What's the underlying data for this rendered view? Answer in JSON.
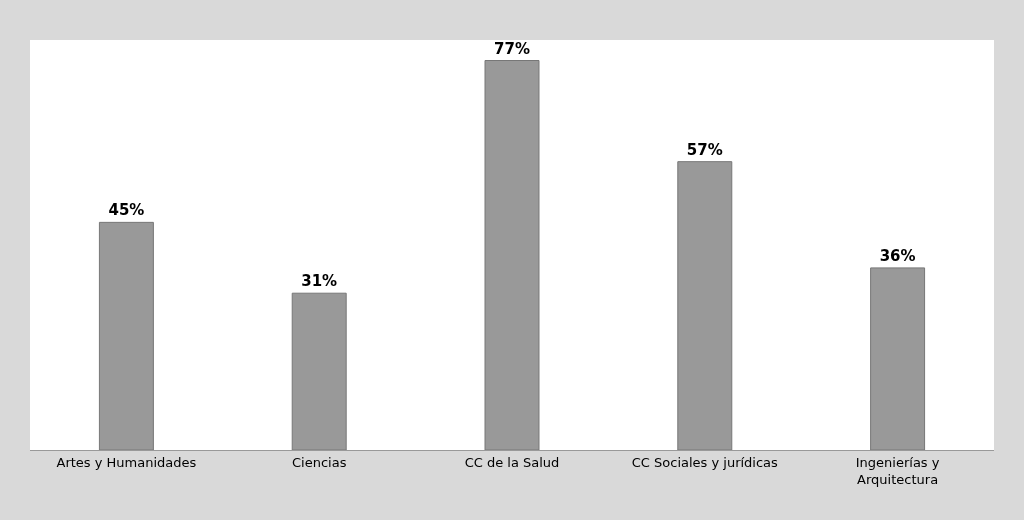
{
  "chart_data": {
    "type": "bar",
    "categories": [
      "Artes y Humanidades",
      "Ciencias",
      "CC de la Salud",
      "CC Sociales y jurídicas",
      "Ingenierías y Arquitectura"
    ],
    "values": [
      45,
      31,
      77,
      57,
      36
    ],
    "value_labels": [
      "45%",
      "31%",
      "77%",
      "57%",
      "36%"
    ],
    "color": "#999999",
    "tick_labels": "x"
  }
}
